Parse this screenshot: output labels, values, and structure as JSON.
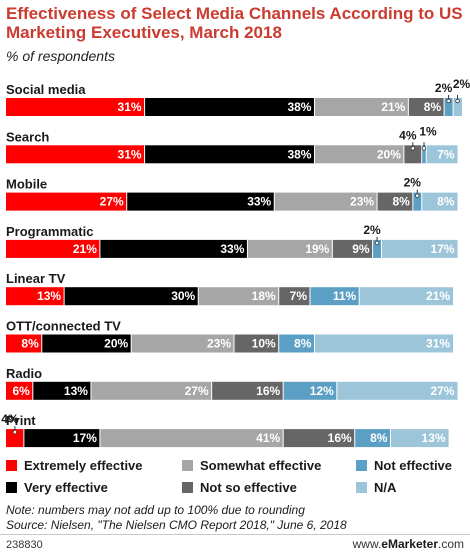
{
  "header": {
    "title": "Effectiveness of Select Media Channels According to US Marketing Executives, March 2018",
    "subtitle": "% of respondents"
  },
  "chart_data": {
    "type": "bar",
    "stacked": true,
    "orientation": "horizontal",
    "categories": [
      "Social media",
      "Search",
      "Mobile",
      "Programmatic",
      "Linear TV",
      "OTT/connected TV",
      "Radio",
      "Print"
    ],
    "series": [
      {
        "name": "Extremely effective",
        "color": "#ff0000",
        "label_color": "#ffffff",
        "values": [
          31,
          31,
          27,
          21,
          13,
          8,
          6,
          4
        ]
      },
      {
        "name": "Very effective",
        "color": "#000000",
        "label_color": "#ffffff",
        "values": [
          38,
          38,
          33,
          33,
          30,
          20,
          13,
          17
        ]
      },
      {
        "name": "Somewhat effective",
        "color": "#a6a6a6",
        "label_color": "#ffffff",
        "values": [
          21,
          20,
          23,
          19,
          18,
          23,
          27,
          41
        ]
      },
      {
        "name": "Not so effective",
        "color": "#666666",
        "label_color": "#ffffff",
        "values": [
          8,
          4,
          8,
          9,
          7,
          10,
          16,
          16
        ]
      },
      {
        "name": "Not effective",
        "color": "#5c9fc4",
        "label_color": "#ffffff",
        "values": [
          2,
          1,
          2,
          2,
          11,
          8,
          12,
          8
        ]
      },
      {
        "name": "N/A",
        "color": "#9cc5d9",
        "label_color": "#ffffff",
        "values": [
          2,
          7,
          8,
          17,
          21,
          31,
          27,
          13
        ]
      }
    ],
    "data_labels": [
      [
        "31%",
        "38%",
        "21%",
        "8%",
        "2%",
        "2%"
      ],
      [
        "31%",
        "38%",
        "20%",
        "4%",
        "1%",
        "7%"
      ],
      [
        "27%",
        "33%",
        "23%",
        "8%",
        "2%",
        "8%"
      ],
      [
        "21%",
        "33%",
        "19%",
        "9%",
        "2%",
        "17%"
      ],
      [
        "13%",
        "30%",
        "18%",
        "7%",
        "11%",
        "21%"
      ],
      [
        "8%",
        "20%",
        "23%",
        "10%",
        "8%",
        "31%"
      ],
      [
        "6%",
        "13%",
        "27%",
        "16%",
        "12%",
        "27%"
      ],
      [
        "4%",
        "17%",
        "41%",
        "16%",
        "8%",
        "13%"
      ]
    ],
    "xlim": [
      0,
      102
    ],
    "legend_position": "bottom",
    "grid": false
  },
  "legend": {
    "items": [
      {
        "label": "Extremely effective",
        "color": "#ff0000"
      },
      {
        "label": "Somewhat effective",
        "color": "#a6a6a6"
      },
      {
        "label": "Not effective",
        "color": "#5c9fc4"
      },
      {
        "label": "Very effective",
        "color": "#000000"
      },
      {
        "label": "Not so effective",
        "color": "#666666"
      },
      {
        "label": "N/A",
        "color": "#9cc5d9"
      }
    ]
  },
  "notes": {
    "line1": "Note: numbers may not add up to 100% due to rounding",
    "line2": "Source: Nielsen, \"The Nielsen CMO Report 2018,\" June 6, 2018"
  },
  "footer": {
    "chart_id": "238830",
    "brand_prefix": "www.",
    "brand_name": "eMarketer",
    "brand_suffix": ".com"
  }
}
